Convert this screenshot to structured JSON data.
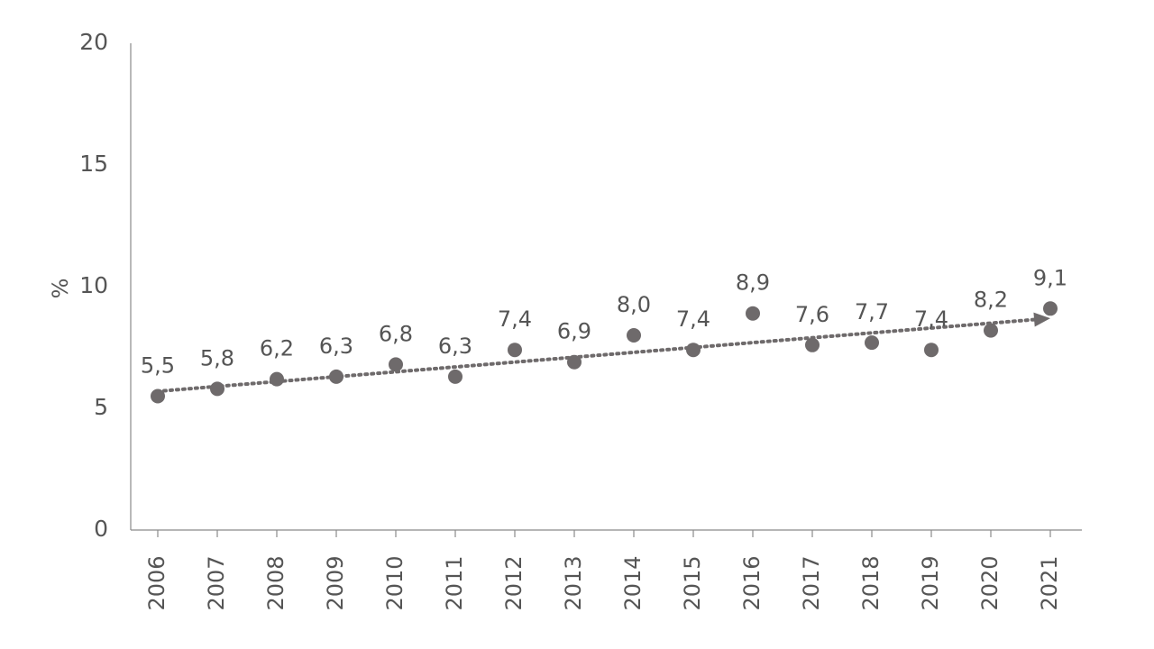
{
  "chart_data": {
    "type": "scatter",
    "title": "",
    "xlabel": "",
    "ylabel": "%",
    "ylim": [
      0,
      20
    ],
    "yticks": [
      0,
      5,
      10,
      15,
      20
    ],
    "grid": false,
    "legend": "none",
    "categories": [
      "2006",
      "2007",
      "2008",
      "2009",
      "2010",
      "2011",
      "2012",
      "2013",
      "2014",
      "2015",
      "2016",
      "2017",
      "2018",
      "2019",
      "2020",
      "2021"
    ],
    "values": [
      5.5,
      5.8,
      6.2,
      6.3,
      6.8,
      6.3,
      7.4,
      6.9,
      8.0,
      7.4,
      8.9,
      7.6,
      7.7,
      7.4,
      8.2,
      9.1
    ],
    "data_labels": [
      "5,5",
      "5,8",
      "6,2",
      "6,3",
      "6,8",
      "6,3",
      "7,4",
      "6,9",
      "8,0",
      "7,4",
      "8,9",
      "7,6",
      "7,7",
      "7,4",
      "8,2",
      "9,1"
    ],
    "trendline": {
      "style": "dotted-arrow",
      "start": {
        "x": "2006",
        "y": 5.7
      },
      "end": {
        "x": "2021",
        "y": 8.7
      }
    },
    "colors": {
      "marker": "#6e6a6b",
      "axis": "#8a8a8a",
      "text": "#555555"
    }
  }
}
